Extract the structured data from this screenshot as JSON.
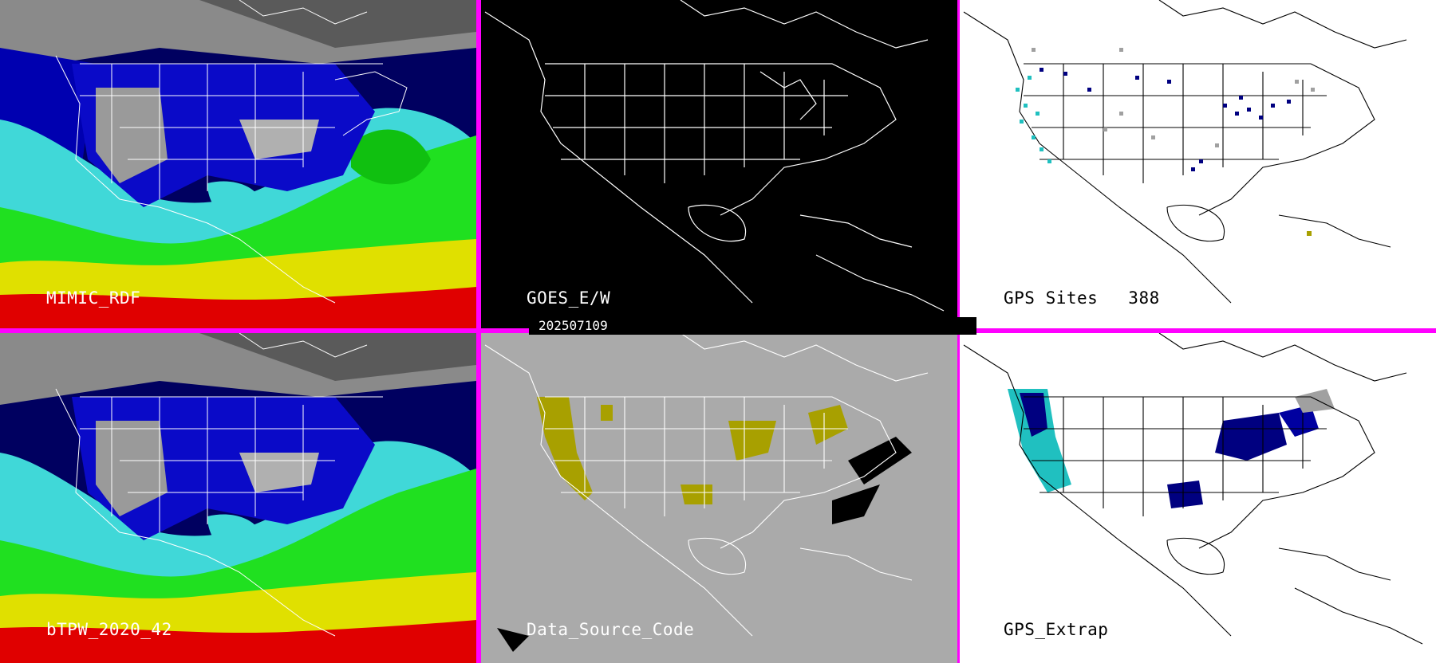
{
  "panels": {
    "top_left": {
      "label": "MIMIC_RDF"
    },
    "top_center": {
      "label": "GOES_E/W"
    },
    "top_right": {
      "label": "GPS Sites",
      "count": "388"
    },
    "bottom_left": {
      "label": "bTPW_2020_42"
    },
    "bottom_center": {
      "label": "Data_Source_Code"
    },
    "bottom_right": {
      "label": "GPS_Extrap"
    }
  },
  "date": "202507109",
  "colors": {
    "divider": "#ff00ff",
    "tpw_scale": [
      "#7f7f7f",
      "#000080",
      "#0000c8",
      "#1a9a9a",
      "#40e0e0",
      "#00ff00",
      "#ffff00",
      "#ff0000"
    ],
    "data_source": "#a8a000",
    "gps_dark": "#000080",
    "gps_cyan": "#20c0c0",
    "gps_gray": "#a0a0a0"
  }
}
